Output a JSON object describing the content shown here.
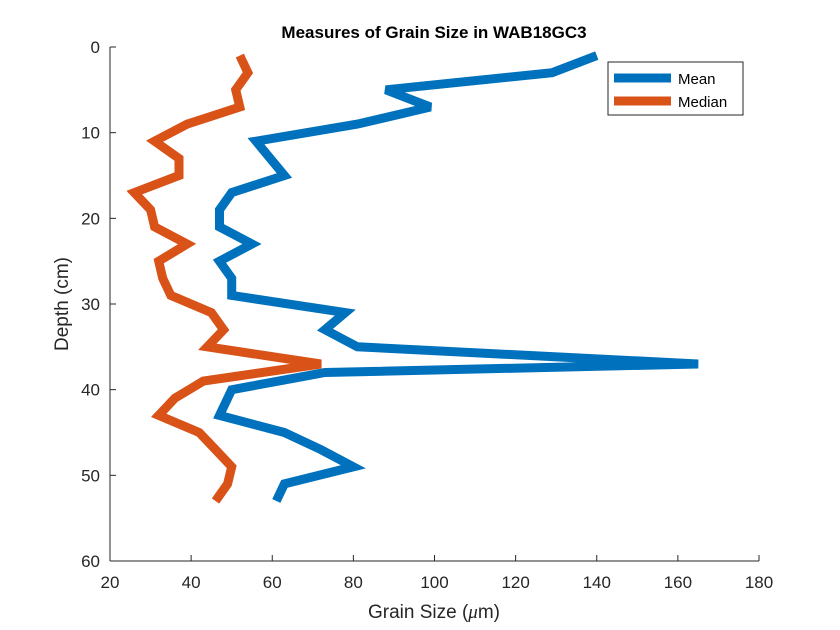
{
  "chart_data": {
    "type": "line",
    "title": "Measures of Grain Size in WAB18GC3",
    "xlabel_prefix": "Grain Size (",
    "xlabel_mu": "μ",
    "xlabel_suffix": "m)",
    "ylabel": "Depth (cm)",
    "xlim": [
      20,
      180
    ],
    "ylim": [
      0,
      60
    ],
    "y_reversed": true,
    "x_ticks": [
      20,
      40,
      60,
      80,
      100,
      120,
      140,
      160,
      180
    ],
    "y_ticks": [
      0,
      10,
      20,
      30,
      40,
      50,
      60
    ],
    "grid": false,
    "legend_placement": "top-right",
    "series": [
      {
        "name": "Mean",
        "color": "#0072BD",
        "points": [
          [
            140,
            1
          ],
          [
            129,
            3
          ],
          [
            88,
            5
          ],
          [
            99,
            7
          ],
          [
            81,
            9
          ],
          [
            56,
            11
          ],
          [
            63,
            15
          ],
          [
            50,
            17
          ],
          [
            47,
            19
          ],
          [
            47,
            21
          ],
          [
            55,
            23
          ],
          [
            47,
            25
          ],
          [
            50,
            27
          ],
          [
            50,
            29
          ],
          [
            78,
            31
          ],
          [
            73,
            33
          ],
          [
            81,
            35
          ],
          [
            165,
            37
          ],
          [
            73,
            38
          ],
          [
            50,
            40
          ],
          [
            47,
            43
          ],
          [
            63,
            45
          ],
          [
            72,
            47
          ],
          [
            80,
            49
          ],
          [
            63,
            51
          ],
          [
            61,
            53
          ]
        ]
      },
      {
        "name": "Median",
        "color": "#D95319",
        "points": [
          [
            52,
            1
          ],
          [
            54,
            3
          ],
          [
            51,
            5
          ],
          [
            52,
            7
          ],
          [
            39,
            9
          ],
          [
            31,
            11
          ],
          [
            37,
            13
          ],
          [
            37,
            15
          ],
          [
            26,
            17
          ],
          [
            30,
            19
          ],
          [
            31,
            21
          ],
          [
            39,
            23
          ],
          [
            32,
            25
          ],
          [
            33,
            27
          ],
          [
            35,
            29
          ],
          [
            45,
            31
          ],
          [
            48,
            33
          ],
          [
            44,
            35
          ],
          [
            72,
            37
          ],
          [
            43,
            39
          ],
          [
            36,
            41
          ],
          [
            32,
            43
          ],
          [
            42,
            45
          ],
          [
            46,
            47
          ],
          [
            50,
            49
          ],
          [
            49,
            51
          ],
          [
            46,
            53
          ]
        ]
      }
    ]
  }
}
